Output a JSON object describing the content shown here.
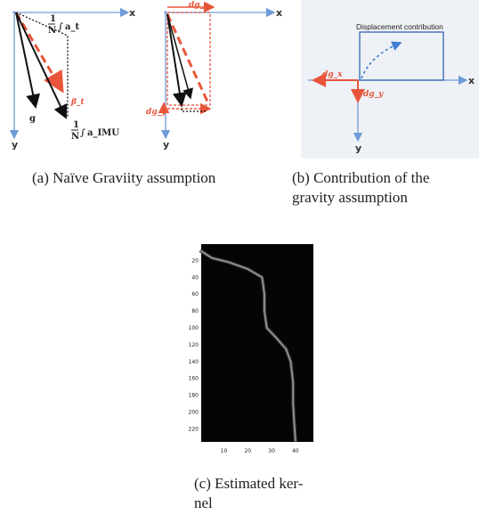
{
  "figures": {
    "a": {
      "caption": "(a)  Naïve Graviity assumption",
      "axis_x": "x",
      "axis_y": "y",
      "label_at": "a_t",
      "label_beta": "β_t",
      "label_g": "g",
      "label_aimu": "a_IMU",
      "frac_one": "1",
      "frac_n": "N"
    },
    "a2": {
      "axis_x": "x",
      "axis_y": "y",
      "label_dgx": "dg_x",
      "label_dgy": "dg_y"
    },
    "b": {
      "caption_line1": "(b)  Contribution of the",
      "caption_line2": "gravity assumption",
      "box_title": "Displacement contribution",
      "axis_x": "x",
      "axis_y": "y",
      "label_dgx": "dg_x",
      "label_dgy": "dg_y"
    },
    "c": {
      "caption_line1": "(c)  Estimated   ker-",
      "caption_line2": "nel",
      "chart_data": {
        "type": "heatmap",
        "xticks": [
          10,
          20,
          30,
          40
        ],
        "yticks": [
          20,
          40,
          60,
          80,
          100,
          120,
          140,
          160,
          180,
          200,
          220
        ],
        "xlim": [
          0.5,
          47.5
        ],
        "ylim": [
          0.5,
          235.5
        ],
        "trace": [
          [
            0,
            8
          ],
          [
            5,
            17
          ],
          [
            12,
            22
          ],
          [
            20,
            30
          ],
          [
            26,
            40
          ],
          [
            27,
            60
          ],
          [
            27,
            80
          ],
          [
            28,
            100
          ],
          [
            32,
            112
          ],
          [
            36,
            125
          ],
          [
            38,
            140
          ],
          [
            39,
            165
          ],
          [
            39,
            190
          ],
          [
            39.5,
            215
          ],
          [
            40,
            235
          ]
        ]
      }
    }
  }
}
